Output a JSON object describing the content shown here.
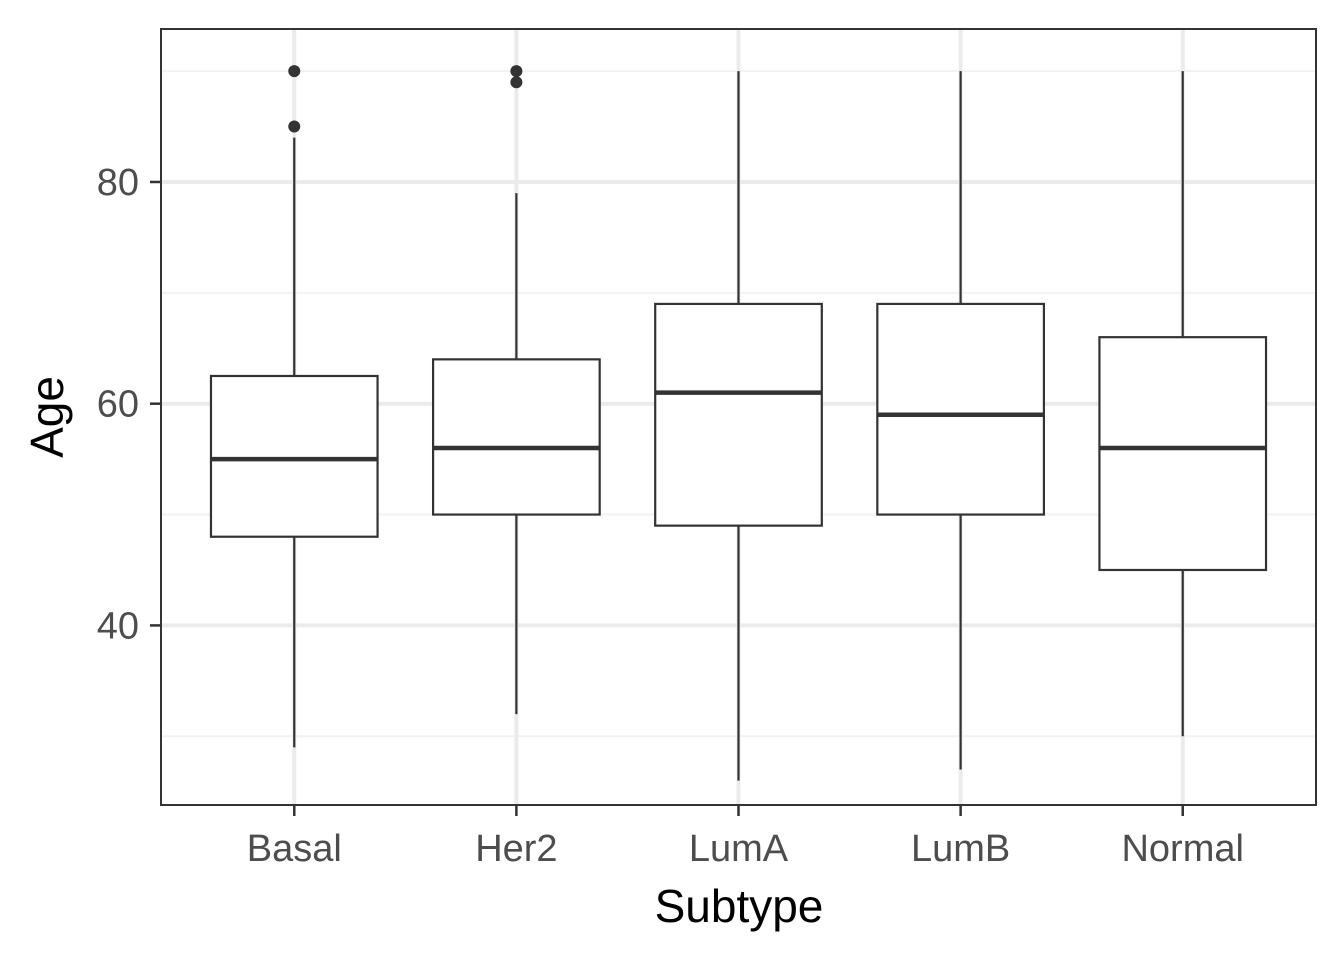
{
  "chart_data": {
    "type": "box",
    "xlabel": "Subtype",
    "ylabel": "Age",
    "categories": [
      "Basal",
      "Her2",
      "LumA",
      "LumB",
      "Normal"
    ],
    "ylim": [
      23.8,
      93.8
    ],
    "y_ticks": [
      40,
      60,
      80
    ],
    "y_minor_ticks": [
      30,
      50,
      70,
      90
    ],
    "grid": true,
    "boxes": [
      {
        "category": "Basal",
        "whisker_low": 29,
        "q1": 48,
        "median": 55,
        "q3": 62.5,
        "whisker_high": 84,
        "outliers": [
          85,
          90
        ]
      },
      {
        "category": "Her2",
        "whisker_low": 32,
        "q1": 50,
        "median": 56,
        "q3": 64,
        "whisker_high": 79,
        "outliers": [
          89,
          90
        ]
      },
      {
        "category": "LumA",
        "whisker_low": 26,
        "q1": 49,
        "median": 61,
        "q3": 69,
        "whisker_high": 90,
        "outliers": []
      },
      {
        "category": "LumB",
        "whisker_low": 27,
        "q1": 50,
        "median": 59,
        "q3": 69,
        "whisker_high": 90,
        "outliers": []
      },
      {
        "category": "Normal",
        "whisker_low": 30,
        "q1": 45,
        "median": 56,
        "q3": 66,
        "whisker_high": 90,
        "outliers": []
      }
    ],
    "colors": {
      "panel_border": "#333333",
      "grid_major": "#ebebeb",
      "grid_minor": "#f2f2f2",
      "box_stroke": "#333333",
      "box_fill": "#ffffff",
      "tick_text": "#4d4d4d",
      "title_text": "#000000"
    }
  }
}
